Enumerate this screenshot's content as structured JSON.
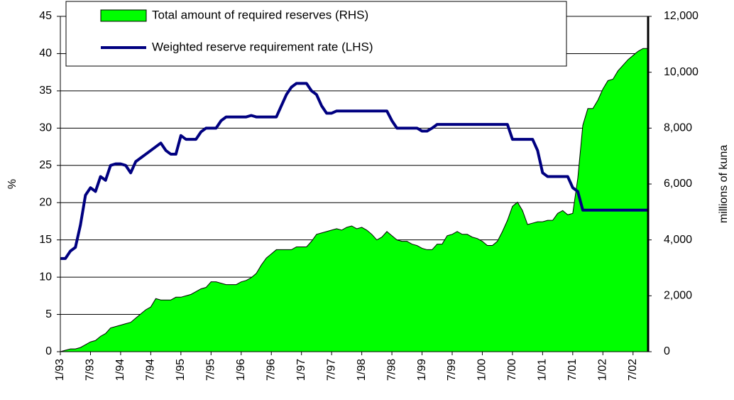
{
  "chart_data": {
    "type": "area-line",
    "y_label": "%",
    "y2_label": "millions of kuna",
    "categories": [
      "1/93",
      null,
      null,
      null,
      null,
      null,
      "7/93",
      null,
      null,
      null,
      null,
      null,
      "1/94",
      null,
      null,
      null,
      null,
      null,
      "7/94",
      null,
      null,
      null,
      null,
      null,
      "1/95",
      null,
      null,
      null,
      null,
      null,
      "7/95",
      null,
      null,
      null,
      null,
      null,
      "1/96",
      null,
      null,
      null,
      null,
      null,
      "7/96",
      null,
      null,
      null,
      null,
      null,
      "1/97",
      null,
      null,
      null,
      null,
      null,
      "7/97",
      null,
      null,
      null,
      null,
      null,
      "1/98",
      null,
      null,
      null,
      null,
      null,
      "7/98",
      null,
      null,
      null,
      null,
      null,
      "1/99",
      null,
      null,
      null,
      null,
      null,
      "7/99",
      null,
      null,
      null,
      null,
      null,
      "1/00",
      null,
      null,
      null,
      null,
      null,
      "7/00",
      null,
      null,
      null,
      null,
      null,
      "1/01",
      null,
      null,
      null,
      null,
      null,
      "7/01",
      null,
      null,
      null,
      null,
      null,
      "1/02",
      null,
      null,
      null,
      null,
      null,
      "7/02",
      null,
      null,
      null
    ],
    "series": [
      {
        "name": "Total amount of required reserves (RHS)",
        "type": "area",
        "axis": "y2",
        "color": "#00ff00",
        "values": [
          0,
          50,
          100,
          100,
          150,
          250,
          350,
          400,
          550,
          650,
          850,
          900,
          950,
          1000,
          1050,
          1200,
          1350,
          1500,
          1600,
          1900,
          1850,
          1850,
          1850,
          1950,
          1950,
          2000,
          2050,
          2150,
          2250,
          2300,
          2500,
          2500,
          2450,
          2400,
          2400,
          2400,
          2500,
          2550,
          2650,
          2800,
          3100,
          3350,
          3500,
          3650,
          3650,
          3650,
          3650,
          3750,
          3750,
          3750,
          3950,
          4200,
          4250,
          4300,
          4350,
          4400,
          4350,
          4450,
          4500,
          4400,
          4450,
          4350,
          4200,
          4000,
          4100,
          4300,
          4150,
          4000,
          3950,
          3950,
          3850,
          3800,
          3700,
          3650,
          3650,
          3850,
          3850,
          4150,
          4200,
          4300,
          4200,
          4200,
          4100,
          4050,
          3950,
          3800,
          3800,
          3950,
          4300,
          4700,
          5200,
          5350,
          5050,
          4550,
          4600,
          4650,
          4650,
          4700,
          4700,
          4950,
          5050,
          4900,
          4950,
          6200,
          8100,
          8700,
          8700,
          9000,
          9400,
          9700,
          9750,
          10050,
          10250,
          10450,
          10600,
          10750,
          10850,
          10850
        ]
      },
      {
        "name": "Weighted reserve requirement rate (LHS)",
        "type": "line",
        "axis": "y",
        "color": "#000080",
        "values": [
          12.5,
          12.5,
          13.5,
          14,
          17,
          21,
          22,
          21.5,
          23.5,
          23,
          25,
          25.2,
          25.2,
          25,
          24,
          25.5,
          26,
          26.5,
          27,
          27.5,
          28,
          27,
          26.5,
          26.5,
          29,
          28.5,
          28.5,
          28.5,
          29.5,
          30,
          30,
          30,
          31,
          31.5,
          31.5,
          31.5,
          31.5,
          31.5,
          31.7,
          31.5,
          31.5,
          31.5,
          31.5,
          31.5,
          33,
          34.5,
          35.5,
          36,
          36,
          36,
          35,
          34.5,
          33,
          32,
          32,
          32.3,
          32.3,
          32.3,
          32.3,
          32.3,
          32.3,
          32.3,
          32.3,
          32.3,
          32.3,
          32.3,
          31,
          30,
          30,
          30,
          30,
          30,
          29.6,
          29.6,
          30,
          30.5,
          30.5,
          30.5,
          30.5,
          30.5,
          30.5,
          30.5,
          30.5,
          30.5,
          30.5,
          30.5,
          30.5,
          30.5,
          30.5,
          30.5,
          28.5,
          28.5,
          28.5,
          28.5,
          28.5,
          27,
          24,
          23.5,
          23.5,
          23.5,
          23.5,
          23.5,
          22,
          21.5,
          19,
          19,
          19,
          19,
          19,
          19,
          19,
          19,
          19,
          19,
          19,
          19,
          19,
          19
        ]
      }
    ],
    "ylim": [
      0,
      45
    ],
    "yticks": [
      0,
      5,
      10,
      15,
      20,
      25,
      30,
      35,
      40,
      45
    ],
    "y2lim": [
      0,
      12000
    ],
    "y2ticks": [
      0,
      {
        "value": 2000,
        "label": "2,000"
      },
      {
        "value": 4000,
        "label": "4,000"
      },
      {
        "value": 6000,
        "label": "6,000"
      },
      {
        "value": 8000,
        "label": "8,000"
      },
      {
        "value": 10000,
        "label": "10,000"
      },
      {
        "value": 12000,
        "label": "12,000"
      }
    ],
    "grid": true
  }
}
